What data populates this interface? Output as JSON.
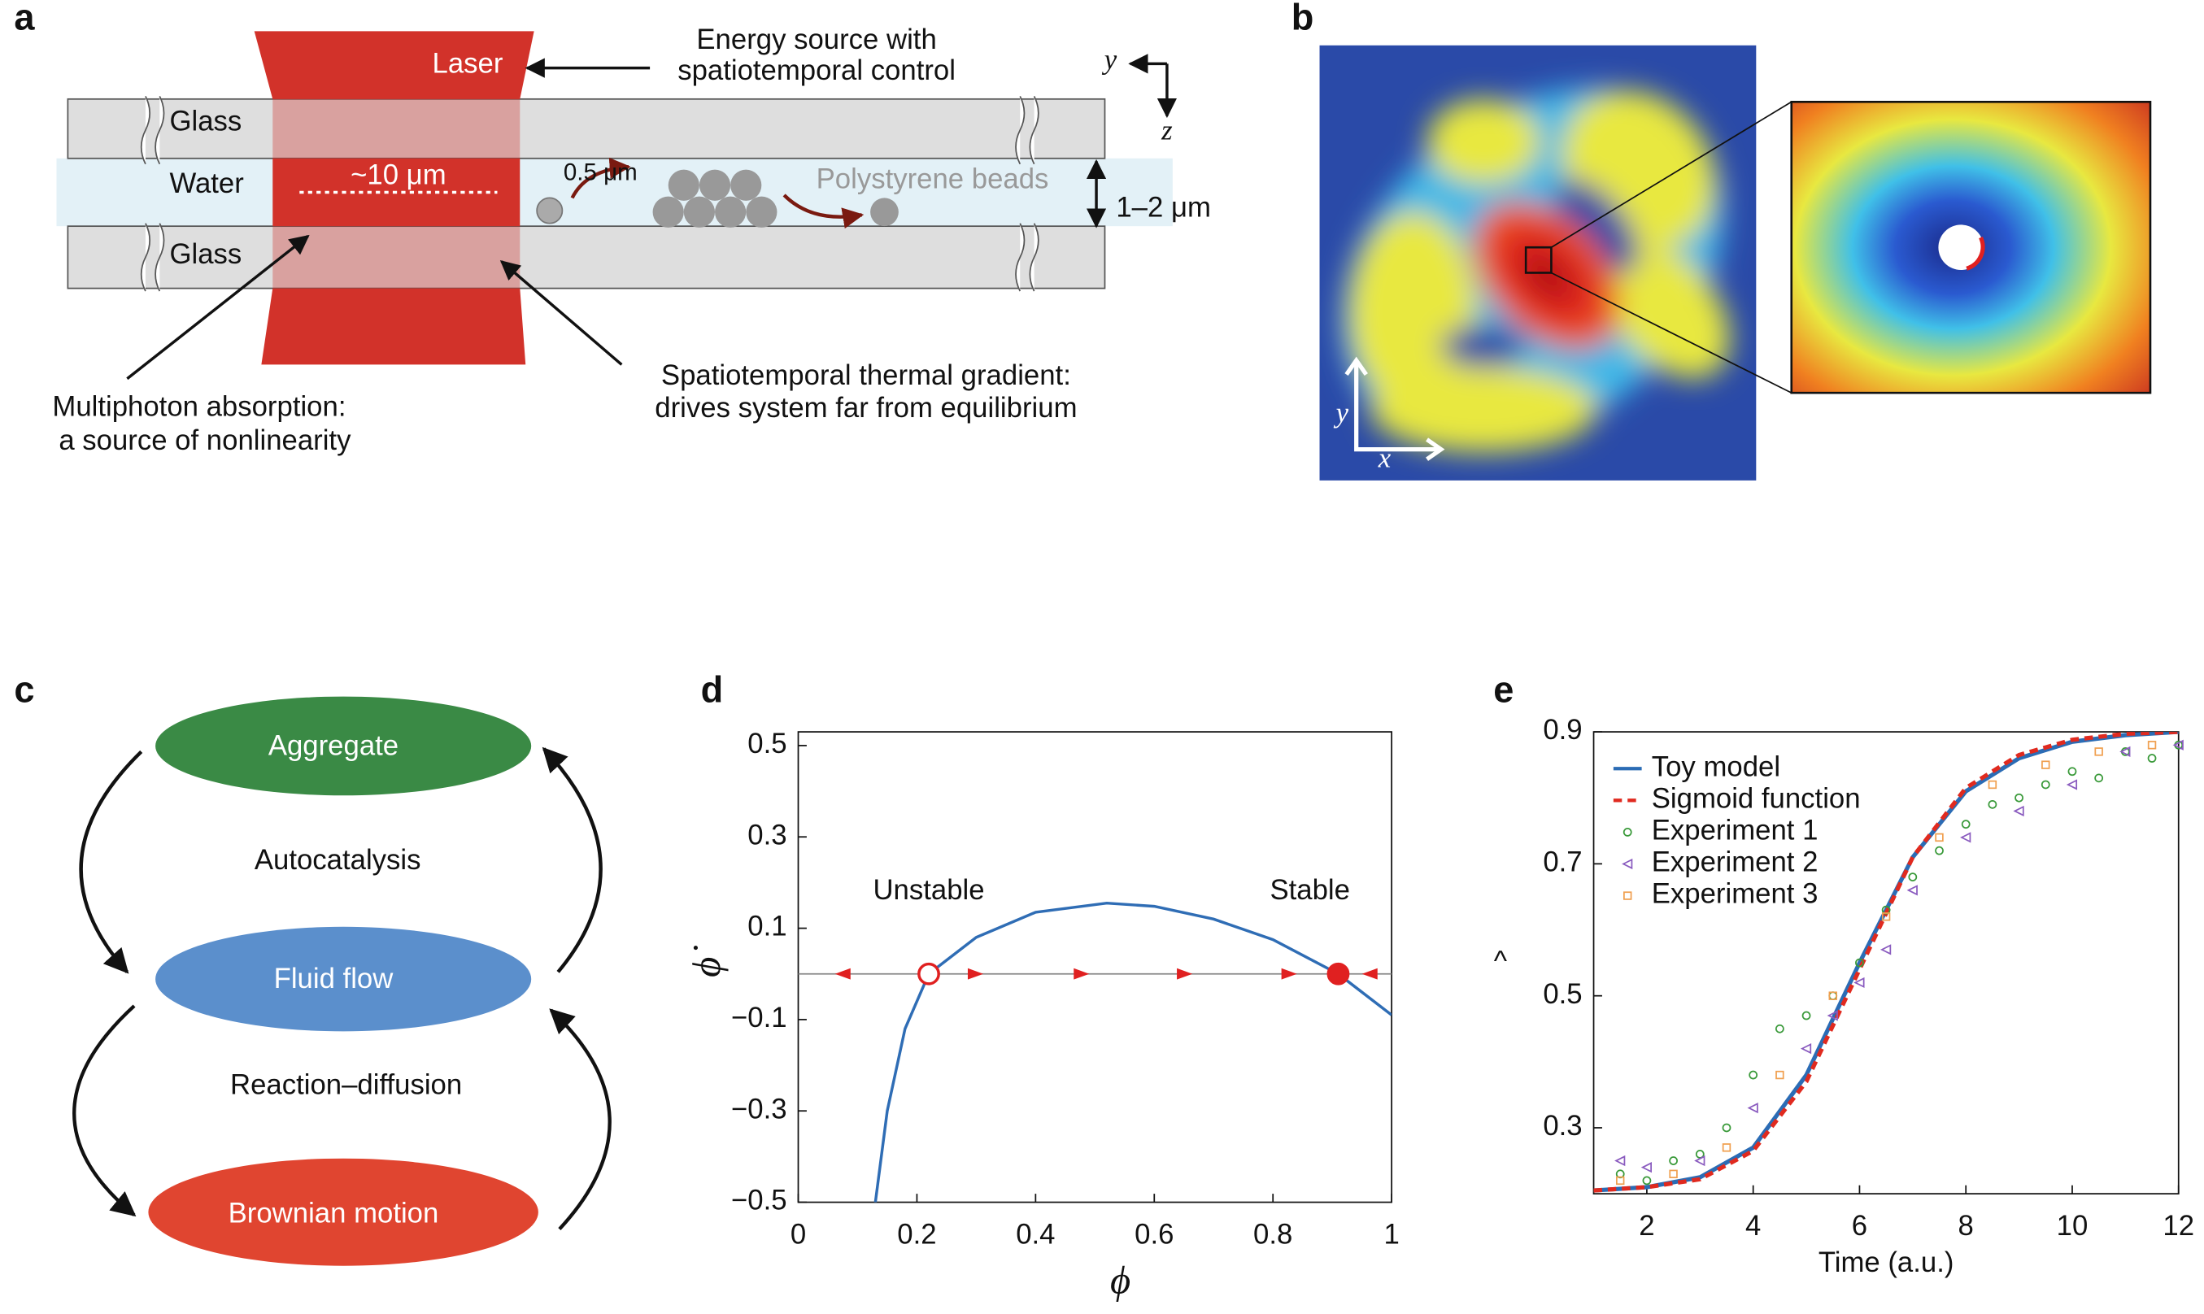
{
  "panel_labels": [
    "a",
    "b",
    "c",
    "d",
    "e"
  ],
  "panel_a": {
    "laser": "Laser",
    "energy_source": [
      "Energy source with",
      "spatiotemporal control"
    ],
    "glass_top": "Glass",
    "water": "Water",
    "spot_size": "~10 μm",
    "bead_size": "0.5 μm",
    "beads": "Polystyrene beads",
    "gap": "1–2 μm",
    "glass_bottom": "Glass",
    "multiphoton": [
      "Multiphoton absorption:",
      "a source of nonlinearity"
    ],
    "gradient": [
      "Spatiotemporal thermal gradient:",
      "drives system far from equilibrium"
    ],
    "axis_y": "y",
    "axis_z": "z"
  },
  "panel_b": {
    "axis_y": "y",
    "axis_x": "x"
  },
  "panel_c": {
    "nodes": [
      "Aggregate",
      "Fluid flow",
      "Brownian motion"
    ],
    "edges": [
      "Autocatalysis",
      "Reaction–diffusion"
    ]
  },
  "chart_data": [
    {
      "type": "line",
      "xlabel": "ϕ",
      "ylabel": "ϕ̇",
      "xlim": [
        0,
        1
      ],
      "ylim": [
        -0.5,
        0.53
      ],
      "xticks": [
        0,
        0.2,
        0.4,
        0.6,
        0.8,
        1
      ],
      "yticks": [
        {
          "value": -0.5,
          "label": "−0.5"
        },
        {
          "value": -0.3,
          "label": "−0.3"
        },
        {
          "value": -0.1,
          "label": "−0.1"
        },
        0.1,
        0.3,
        0.5
      ],
      "series": [
        {
          "color": "#2f6db5",
          "x": [
            0.13,
            0.15,
            0.18,
            0.22,
            0.3,
            0.4,
            0.52,
            0.6,
            0.7,
            0.8,
            0.91,
            1.0
          ],
          "values": [
            -0.5,
            -0.3,
            -0.12,
            0,
            0.08,
            0.135,
            0.155,
            0.148,
            0.12,
            0.075,
            0,
            -0.09
          ]
        }
      ],
      "points": [
        {
          "label": "Unstable",
          "x": 0.22,
          "y": 0,
          "filled": false
        },
        {
          "label": "Stable",
          "x": 0.91,
          "y": 0,
          "filled": true
        }
      ],
      "point_color": "#e02020"
    },
    {
      "type": "line",
      "xlabel": "Time (a.u.)",
      "ylabel": "^",
      "xlim": [
        1,
        12
      ],
      "ylim": [
        0.2,
        0.9
      ],
      "xticks": [
        2,
        4,
        6,
        8,
        10,
        12
      ],
      "yticks": [
        0.3,
        0.5,
        0.7,
        0.9
      ],
      "legend": "upper-left",
      "series": [
        {
          "name": "Toy model",
          "color": "#2b6cb5",
          "style": "solid",
          "x": [
            1,
            2,
            3,
            4,
            5,
            6,
            7,
            8,
            9,
            10,
            11,
            12
          ],
          "values": [
            0.205,
            0.21,
            0.225,
            0.27,
            0.38,
            0.55,
            0.71,
            0.81,
            0.86,
            0.885,
            0.895,
            0.9
          ]
        },
        {
          "name": "Sigmoid function",
          "color": "#e02a1f",
          "style": "dashed",
          "x": [
            1,
            2,
            3,
            4,
            5,
            6,
            7,
            8,
            9,
            10,
            11,
            12
          ],
          "values": [
            0.205,
            0.21,
            0.222,
            0.265,
            0.37,
            0.54,
            0.71,
            0.815,
            0.865,
            0.888,
            0.897,
            0.9
          ]
        },
        {
          "name": "Experiment 1",
          "color": "#3a9a3a",
          "marker": "circle",
          "x": [
            1.5,
            2,
            2.5,
            3,
            3.5,
            4,
            4.5,
            5,
            5.5,
            6,
            6.5,
            7,
            7.5,
            8,
            8.5,
            9,
            9.5,
            10,
            10.5,
            11,
            11.5,
            12
          ],
          "values": [
            0.23,
            0.22,
            0.25,
            0.26,
            0.3,
            0.38,
            0.45,
            0.47,
            0.5,
            0.55,
            0.63,
            0.68,
            0.72,
            0.76,
            0.79,
            0.8,
            0.82,
            0.84,
            0.83,
            0.87,
            0.86,
            0.88
          ]
        },
        {
          "name": "Experiment 2",
          "color": "#8a5bbf",
          "marker": "triangle",
          "x": [
            1.5,
            2,
            3,
            4,
            5,
            5.5,
            6,
            6.5,
            7,
            8,
            9,
            10,
            11,
            12
          ],
          "values": [
            0.25,
            0.24,
            0.25,
            0.33,
            0.42,
            0.47,
            0.52,
            0.57,
            0.66,
            0.74,
            0.78,
            0.82,
            0.87,
            0.88
          ]
        },
        {
          "name": "Experiment 3",
          "color": "#f0a050",
          "marker": "square",
          "x": [
            1.5,
            2.5,
            3.5,
            4.5,
            5.5,
            6.5,
            7.5,
            8.5,
            9.5,
            10.5,
            11.5
          ],
          "values": [
            0.22,
            0.23,
            0.27,
            0.38,
            0.5,
            0.62,
            0.74,
            0.82,
            0.85,
            0.87,
            0.88
          ]
        }
      ]
    }
  ]
}
